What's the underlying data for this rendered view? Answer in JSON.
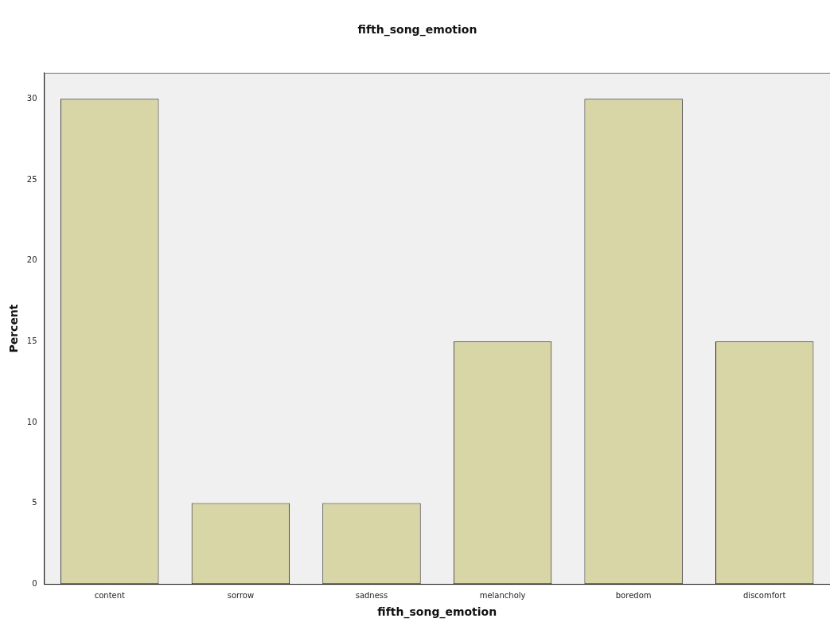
{
  "chart_data": {
    "type": "bar",
    "title": "fifth_song_emotion",
    "xlabel": "fifth_song_emotion",
    "ylabel": "Percent",
    "categories": [
      "content",
      "sorrow",
      "sadness",
      "melancholy",
      "boredom",
      "discomfort"
    ],
    "values": [
      30,
      5,
      5,
      15,
      30,
      15
    ],
    "color": "#d8d5a6",
    "ylim": [
      0,
      31.6
    ],
    "yticks": [
      0,
      5,
      10,
      15,
      20,
      25,
      30
    ],
    "grid": false,
    "legend": false
  }
}
